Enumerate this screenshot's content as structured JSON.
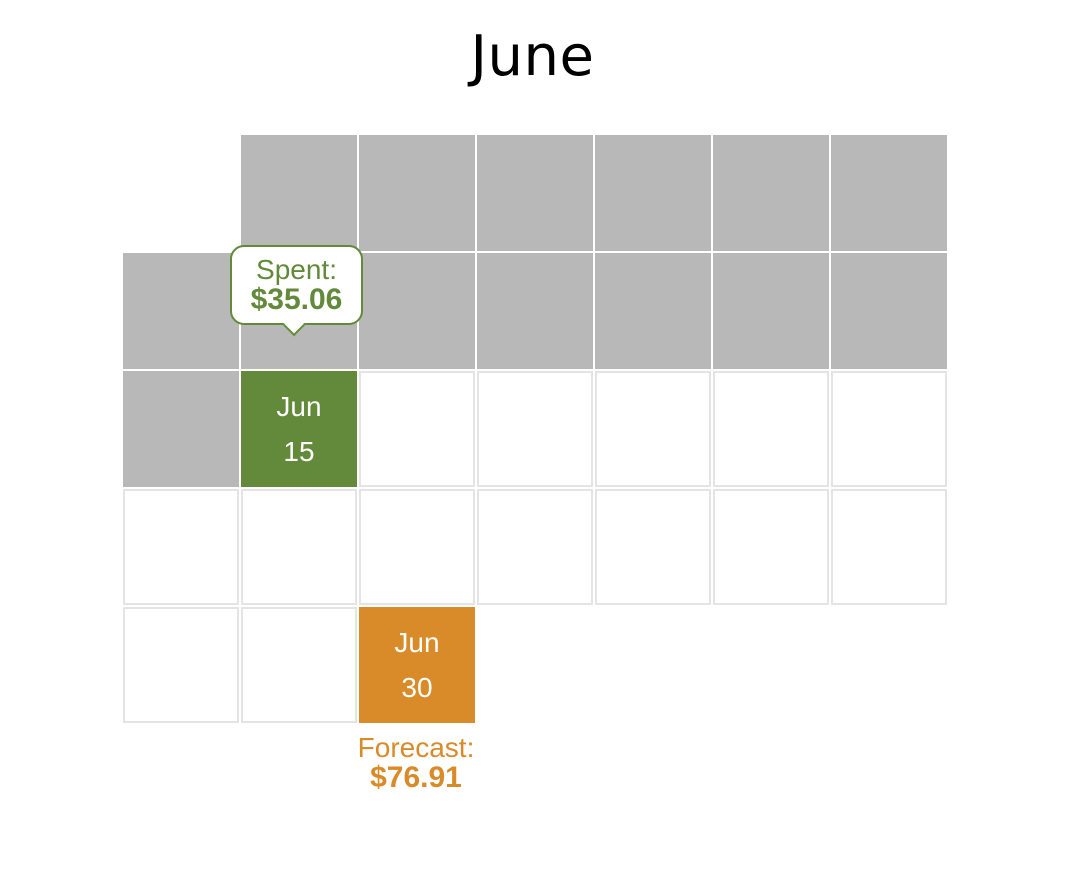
{
  "title": "June",
  "today": {
    "month": "Jun",
    "day": "15",
    "spent_label": "Spent:",
    "spent_value": "$35.06"
  },
  "end": {
    "month": "Jun",
    "day": "30",
    "forecast_label": "Forecast:",
    "forecast_value": "$76.91"
  },
  "colors": {
    "past_day": "#b8b8b8",
    "today": "#638a3b",
    "forecast": "#d98b2a",
    "future_border": "#e4e4e4"
  }
}
